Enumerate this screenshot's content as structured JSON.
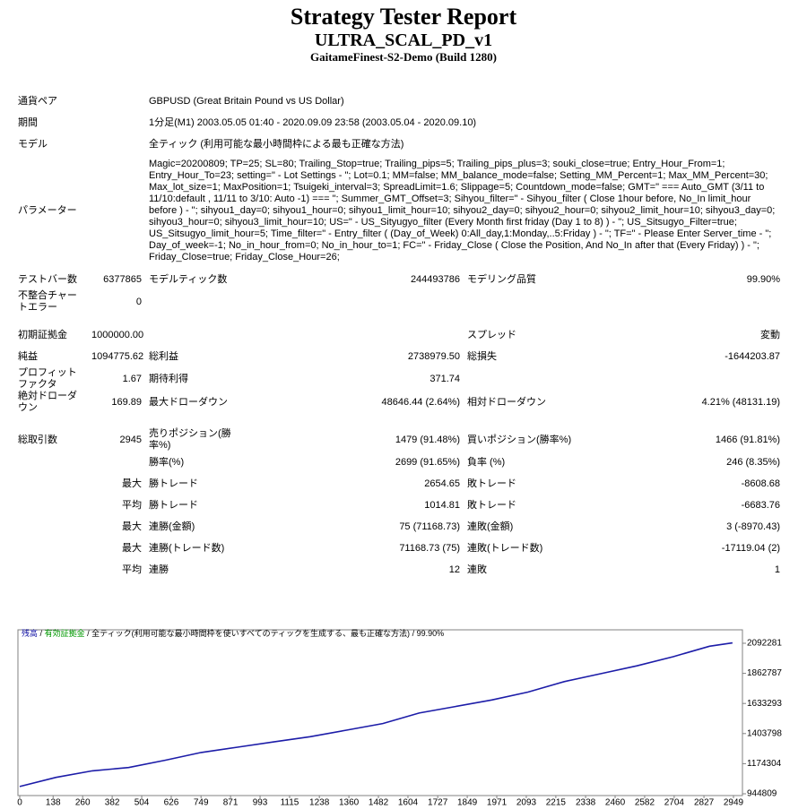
{
  "header": {
    "title": "Strategy Tester Report",
    "subtitle": "ULTRA_SCAL_PD_v1",
    "server": "GaitameFinest-S2-Demo (Build 1280)"
  },
  "table": {
    "rows": [
      [
        "通貨ペア",
        "GBPUSD (Great Britain Pound vs US Dollar)"
      ],
      [
        "期間",
        "1分足(M1) 2003.05.05 01:40 - 2020.09.09 23:58 (2003.05.04 - 2020.09.10)"
      ],
      [
        "モデル",
        "全ティック (利用可能な最小時間枠による最も正確な方法)"
      ],
      [
        "パラメーター",
        "Magic=20200809; TP=25; SL=80; Trailing_Stop=true; Trailing_pips=5; Trailing_pips_plus=3; souki_close=true; Entry_Hour_From=1; Entry_Hour_To=23; setting=\" - Lot Settings - \"; Lot=0.1; MM=false; MM_balance_mode=false; Setting_MM_Percent=1; Max_MM_Percent=30; Max_lot_size=1; MaxPosition=1; Tsuigeki_interval=3; SpreadLimit=1.6; Slippage=5; Countdown_mode=false; GMT=\" === Auto_GMT (3/11 to 11/10:default , 11/11 to 3/10: Auto -1) === \"; Summer_GMT_Offset=3; Sihyou_filter=\" - Sihyou_filter ( Close 1hour before, No_In limit_hour before ) - \"; sihyou1_day=0; sihyou1_hour=0; sihyou1_limit_hour=10; sihyou2_day=0; sihyou2_hour=0; sihyou2_limit_hour=10; sihyou3_day=0; sihyou3_hour=0; sihyou3_limit_hour=10; US=\" - US_Sityugyo_filter (Every Month first friday (Day 1 to 8) ) - \"; US_Sitsugyo_Filter=true; US_Sitsugyo_limit_hour=5; Time_filter=\" - Entry_filter ( (Day_of_Week) 0:All_day,1:Monday,..5:Friday ) - \"; TF=\" - Please Enter Server_time - \"; Day_of_week=-1; No_in_hour_from=0; No_in_hour_to=1; FC=\" - Friday_Close ( Close the Position, And No_In after that (Every Friday) ) - \"; Friday_Close=true; Friday_Close_Hour=26;"
      ],
      [
        "テストバー数",
        "6377865",
        "モデルティック数",
        "244493786",
        "モデリング品質",
        "99.90%"
      ],
      [
        "不整合チャートエラー",
        "0",
        null,
        null,
        null,
        null
      ],
      [
        "初期証拠金",
        "1000000.00",
        null,
        null,
        "スプレッド",
        "変動"
      ],
      [
        "純益",
        "1094775.62",
        "総利益",
        "2738979.50",
        "総損失",
        "-1644203.87"
      ],
      [
        "プロフィットファクタ",
        "1.67",
        "期待利得",
        "371.74",
        null,
        null
      ],
      [
        "絶対ドローダウン",
        "169.89",
        "最大ドローダウン",
        "48646.44 (2.64%)",
        "相対ドローダウン",
        "4.21% (48131.19)"
      ],
      [
        "総取引数",
        "2945",
        "売りポジション(勝率%)",
        "1479 (91.48%)",
        "買いポジション(勝率%)",
        "1466 (91.81%)"
      ],
      [
        null,
        null,
        "勝率(%)",
        "2699 (91.65%)",
        "負率 (%)",
        "246 (8.35%)"
      ],
      [
        null,
        "最大",
        "勝トレード",
        "2654.65",
        "敗トレード",
        "-8608.68"
      ],
      [
        null,
        "平均",
        "勝トレード",
        "1014.81",
        "敗トレード",
        "-6683.76"
      ],
      [
        null,
        "最大",
        "連勝(金額)",
        "75 (71168.73)",
        "連敗(金額)",
        "3 (-8970.43)"
      ],
      [
        null,
        "最大",
        "連勝(トレード数)",
        "71168.73 (75)",
        "連敗(トレード数)",
        "-17119.04 (2)"
      ],
      [
        null,
        "平均",
        "連勝",
        "12",
        "連敗",
        "1"
      ]
    ]
  },
  "chart_data": {
    "type": "line",
    "x": [
      0,
      150,
      300,
      450,
      600,
      750,
      900,
      1050,
      1200,
      1350,
      1500,
      1650,
      1800,
      1950,
      2100,
      2250,
      2400,
      2550,
      2700,
      2850,
      2945
    ],
    "series": [
      {
        "name": "残高",
        "color": "#1c1ca8",
        "values": [
          1000000,
          1070000,
          1120000,
          1145000,
          1200000,
          1260000,
          1300000,
          1340000,
          1380000,
          1430000,
          1480000,
          1560000,
          1610000,
          1660000,
          1720000,
          1800000,
          1860000,
          1920000,
          1990000,
          2070000,
          2094775
        ]
      }
    ],
    "legend_notes": [
      {
        "text": "有効証拠金",
        "color": "#009900"
      },
      {
        "text": "全ティック(利用可能な最小時間枠を使いすべてのティックを生成する、最も正確な方法)",
        "color": "#000000"
      },
      {
        "text": "99.90%",
        "color": "#000000"
      }
    ],
    "legend_separator": "/",
    "xlim": [
      0,
      2986
    ],
    "xticks": [
      0,
      138,
      260,
      382,
      504,
      626,
      749,
      871,
      993,
      1115,
      1238,
      1360,
      1482,
      1604,
      1727,
      1849,
      1971,
      2093,
      2215,
      2338,
      2460,
      2582,
      2704,
      2827,
      2949
    ],
    "ylim": [
      931149,
      2194735
    ],
    "yticks": [
      944809,
      1174304,
      1403798,
      1633293,
      1862787,
      2092281
    ]
  }
}
